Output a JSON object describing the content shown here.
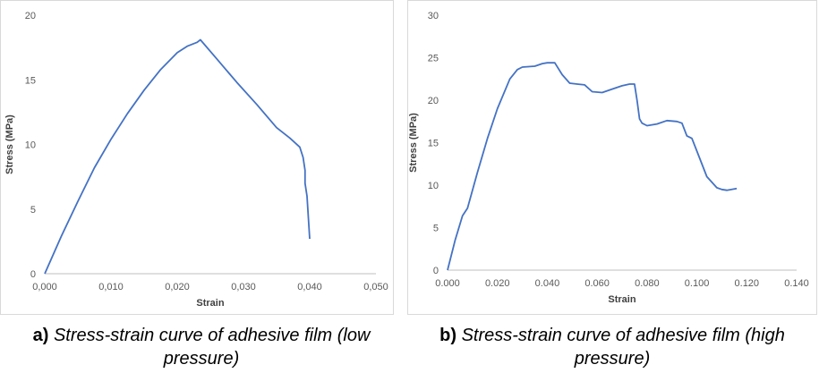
{
  "chart_data": [
    {
      "type": "line",
      "xlabel": "Strain",
      "ylabel": "Stress (MPa)",
      "xlim": [
        0,
        0.05
      ],
      "ylim": [
        0,
        20
      ],
      "x_ticks": [
        "0,000",
        "0,010",
        "0,020",
        "0,030",
        "0,040",
        "0,050"
      ],
      "y_ticks": [
        "0",
        "5",
        "10",
        "15",
        "20"
      ],
      "grid": false,
      "line_color": "#4472c4",
      "caption_label": "a)",
      "caption_text": "Stress-strain curve of adhesive film (low pressure)",
      "series": [
        {
          "x": [
            0.0,
            0.0025,
            0.005,
            0.0075,
            0.01,
            0.0125,
            0.015,
            0.0175,
            0.02,
            0.0215,
            0.023,
            0.0235,
            0.026,
            0.029,
            0.032,
            0.035,
            0.037,
            0.0385,
            0.039,
            0.0393,
            0.0393,
            0.0396,
            0.04
          ],
          "y": [
            0.0,
            2.9,
            5.6,
            8.2,
            10.4,
            12.4,
            14.2,
            15.8,
            17.1,
            17.6,
            17.9,
            18.1,
            16.6,
            14.8,
            13.1,
            11.3,
            10.5,
            9.8,
            9.0,
            8.0,
            7.0,
            6.0,
            2.7
          ]
        }
      ]
    },
    {
      "type": "line",
      "xlabel": "Strain",
      "ylabel": "Stress (MPa)",
      "xlim": [
        0,
        0.14
      ],
      "ylim": [
        0,
        30
      ],
      "x_ticks": [
        "0.000",
        "0.020",
        "0.040",
        "0.060",
        "0.080",
        "0.100",
        "0.120",
        "0.140"
      ],
      "y_ticks": [
        "0",
        "5",
        "10",
        "15",
        "20",
        "25",
        "30"
      ],
      "grid": false,
      "line_color": "#4472c4",
      "caption_label": "b)",
      "caption_text": "Stress-strain curve of adhesive film (high pressure)",
      "series": [
        {
          "x": [
            0.0,
            0.003,
            0.006,
            0.008,
            0.012,
            0.016,
            0.02,
            0.025,
            0.028,
            0.03,
            0.035,
            0.038,
            0.04,
            0.043,
            0.046,
            0.049,
            0.052,
            0.055,
            0.058,
            0.062,
            0.066,
            0.07,
            0.073,
            0.075,
            0.076,
            0.077,
            0.078,
            0.08,
            0.084,
            0.088,
            0.092,
            0.094,
            0.096,
            0.098,
            0.1,
            0.104,
            0.108,
            0.11,
            0.112,
            0.116
          ],
          "y": [
            0.0,
            3.5,
            6.4,
            7.3,
            11.5,
            15.5,
            19.0,
            22.5,
            23.6,
            23.9,
            24.0,
            24.3,
            24.4,
            24.4,
            23.0,
            22.0,
            21.9,
            21.8,
            21.0,
            20.9,
            21.3,
            21.7,
            21.9,
            21.9,
            20.0,
            17.8,
            17.3,
            17.0,
            17.2,
            17.6,
            17.5,
            17.3,
            15.8,
            15.5,
            14.0,
            11.0,
            9.7,
            9.5,
            9.4,
            9.6
          ]
        }
      ]
    }
  ]
}
